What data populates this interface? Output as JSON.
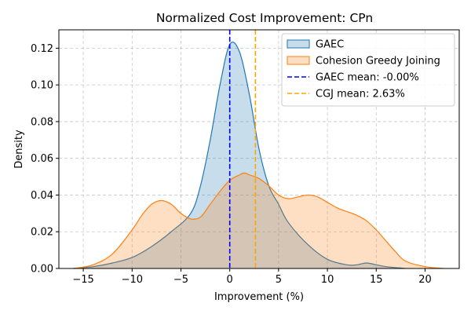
{
  "chart_data": {
    "type": "area",
    "title": "Normalized Cost Improvement: CPn",
    "xlabel": "Improvement (%)",
    "ylabel": "Density",
    "xlim": [
      -17.5,
      23.5
    ],
    "ylim": [
      0,
      0.13
    ],
    "xticks": [
      -15,
      -10,
      -5,
      0,
      5,
      10,
      15,
      20
    ],
    "yticks": [
      0.0,
      0.02,
      0.04,
      0.06,
      0.08,
      0.1,
      0.12
    ],
    "grid": true,
    "legend_position": "top-right",
    "series": [
      {
        "name": "GAEC",
        "color": "#1f77b4",
        "fill": "#1f77b4",
        "fill_opacity": 0.25,
        "x": [
          -16,
          -14,
          -12,
          -10,
          -8,
          -6,
          -4,
          -3,
          -2,
          -1,
          0,
          1,
          2,
          3,
          4,
          5,
          6,
          8,
          10,
          12,
          13,
          14,
          15,
          16,
          18
        ],
        "y": [
          0.0,
          0.001,
          0.003,
          0.006,
          0.012,
          0.02,
          0.03,
          0.045,
          0.07,
          0.1,
          0.122,
          0.118,
          0.095,
          0.065,
          0.045,
          0.035,
          0.025,
          0.013,
          0.005,
          0.002,
          0.002,
          0.003,
          0.002,
          0.001,
          0.0
        ]
      },
      {
        "name": "Cohesion Greedy Joining",
        "color": "#ff7f0e",
        "fill": "#ff7f0e",
        "fill_opacity": 0.25,
        "x": [
          -16,
          -14,
          -12,
          -10,
          -9,
          -8,
          -7,
          -6,
          -5,
          -4,
          -3,
          -2,
          -1,
          0,
          1,
          1.5,
          2,
          3,
          4,
          5,
          6,
          7,
          8,
          9,
          10,
          11,
          12,
          13,
          14,
          15,
          16,
          17,
          18,
          20,
          22
        ],
        "y": [
          0.0,
          0.002,
          0.008,
          0.021,
          0.029,
          0.035,
          0.037,
          0.035,
          0.03,
          0.027,
          0.028,
          0.035,
          0.042,
          0.048,
          0.051,
          0.052,
          0.051,
          0.049,
          0.045,
          0.04,
          0.038,
          0.039,
          0.04,
          0.039,
          0.036,
          0.033,
          0.031,
          0.029,
          0.026,
          0.021,
          0.015,
          0.009,
          0.004,
          0.001,
          0.0
        ]
      }
    ],
    "vlines": [
      {
        "name": "GAEC mean: -0.00%",
        "x": 0.0,
        "color": "#0000ff",
        "style": "dashed"
      },
      {
        "name": "CGJ mean: 2.63%",
        "x": 2.63,
        "color": "#ffa500",
        "style": "dashed"
      }
    ]
  }
}
